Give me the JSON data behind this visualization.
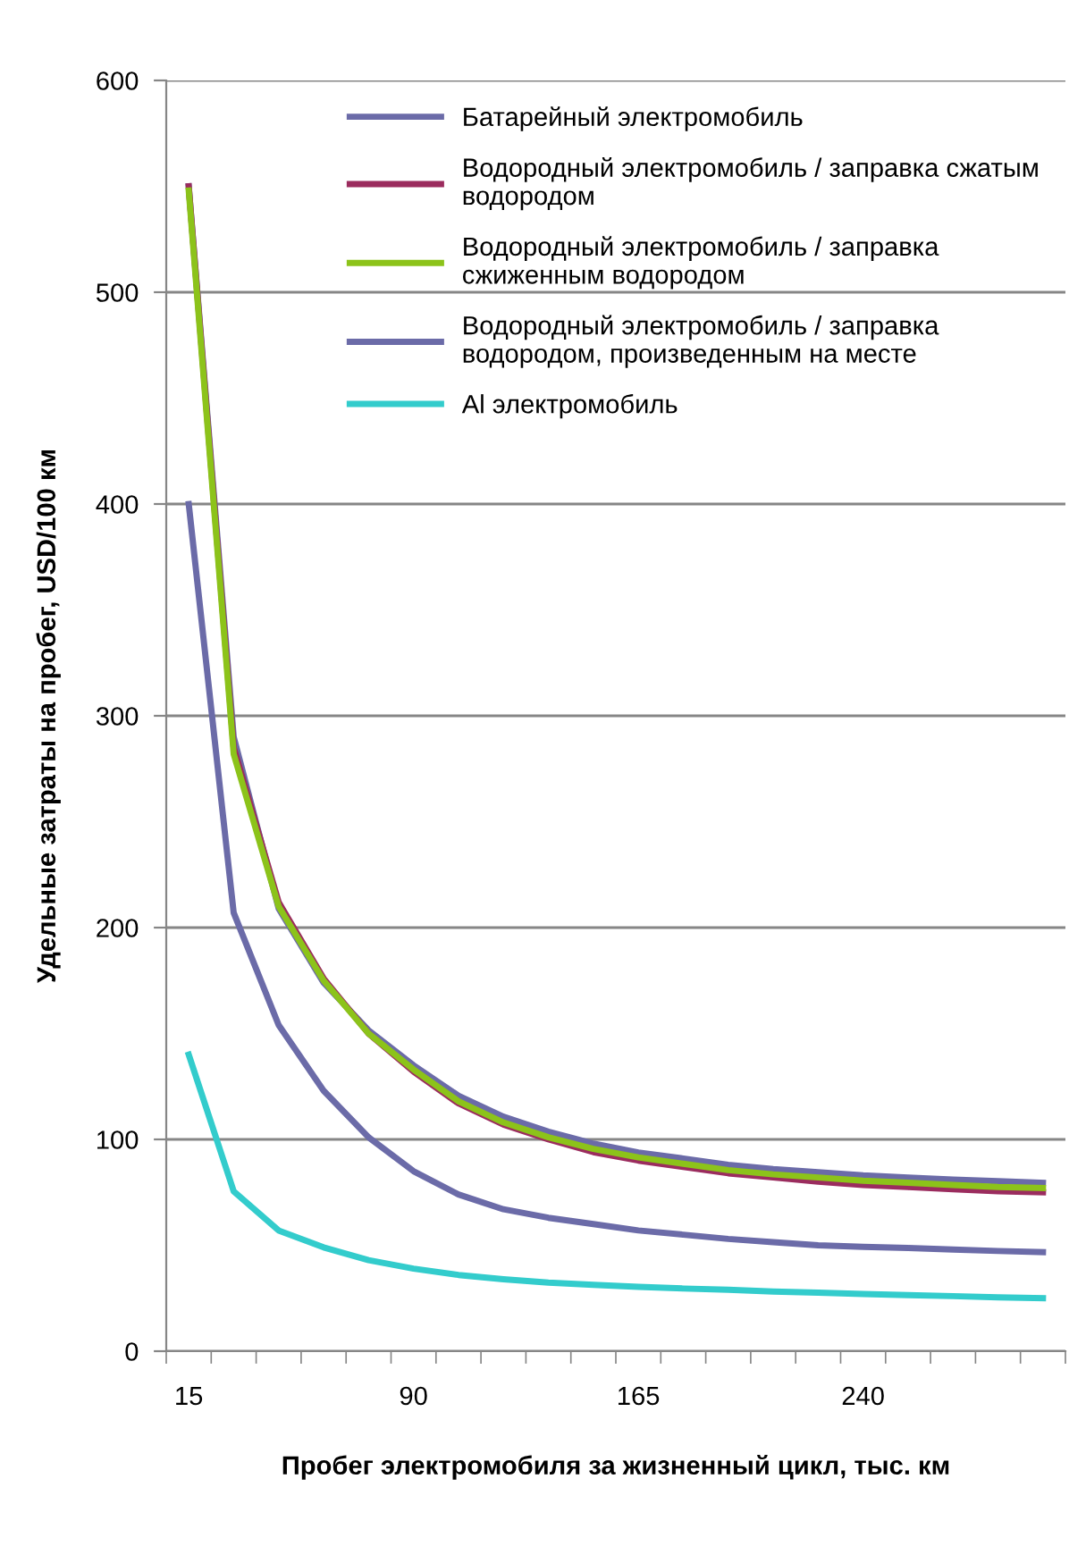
{
  "chart_data": {
    "type": "line",
    "xlabel": "Пробег электромобиля за жизненный цикл, тыс. км",
    "ylabel": "Удельные затраты на пробег, USD/100 км",
    "categories": [
      "15",
      null,
      null,
      null,
      null,
      "90",
      null,
      null,
      null,
      null,
      "165",
      null,
      null,
      null,
      null,
      "240",
      null,
      null,
      null,
      null
    ],
    "ylim": [
      0,
      600
    ],
    "yticks": [
      0,
      100,
      200,
      300,
      400,
      500,
      600
    ],
    "grid": "y",
    "legend": "top right",
    "marker": "none",
    "line_style": "solid",
    "series": [
      {
        "name": "Батарейный электромобиль",
        "color": "#6b6ba8",
        "values": [
          550,
          290,
          209,
          174,
          151.5,
          135,
          120.6,
          110.7,
          103.7,
          98,
          93.8,
          91,
          88,
          86,
          84.5,
          83,
          82,
          81,
          80.3,
          79.5
        ]
      },
      {
        "name": "Водородный электромобиль / заправка сжатым\nводородом",
        "color": "#9b2c5e",
        "values": [
          550,
          285,
          212,
          176,
          150,
          132,
          117,
          107,
          100,
          94,
          90,
          87,
          84,
          82,
          80,
          78.5,
          77.5,
          76.5,
          75.5,
          75
        ]
      },
      {
        "name": "Водородный электромобиль / заправка\nсжиженным водородом",
        "color": "#8cc31a",
        "values": [
          548,
          282,
          210,
          175,
          150,
          133,
          118,
          108,
          101,
          95.5,
          91.5,
          88.5,
          85.5,
          83.5,
          82,
          80.5,
          79.5,
          78.5,
          77.5,
          77
        ]
      },
      {
        "name": "Водородный электромобиль / заправка\nводородом, произведенным на месте",
        "color": "#6b6ba8",
        "values": [
          400,
          207,
          154,
          123,
          101,
          85,
          74,
          67,
          63,
          60,
          57,
          55,
          53,
          51.5,
          50,
          49.3,
          48.7,
          48,
          47.3,
          46.8
        ]
      },
      {
        "name": "Al электромобиль",
        "color": "#33cccc",
        "values": [
          140,
          75.5,
          57,
          49,
          43,
          39,
          36,
          34,
          32.4,
          31.3,
          30.4,
          29.6,
          29,
          28.2,
          27.6,
          27,
          26.5,
          26,
          25.4,
          25
        ]
      }
    ]
  }
}
